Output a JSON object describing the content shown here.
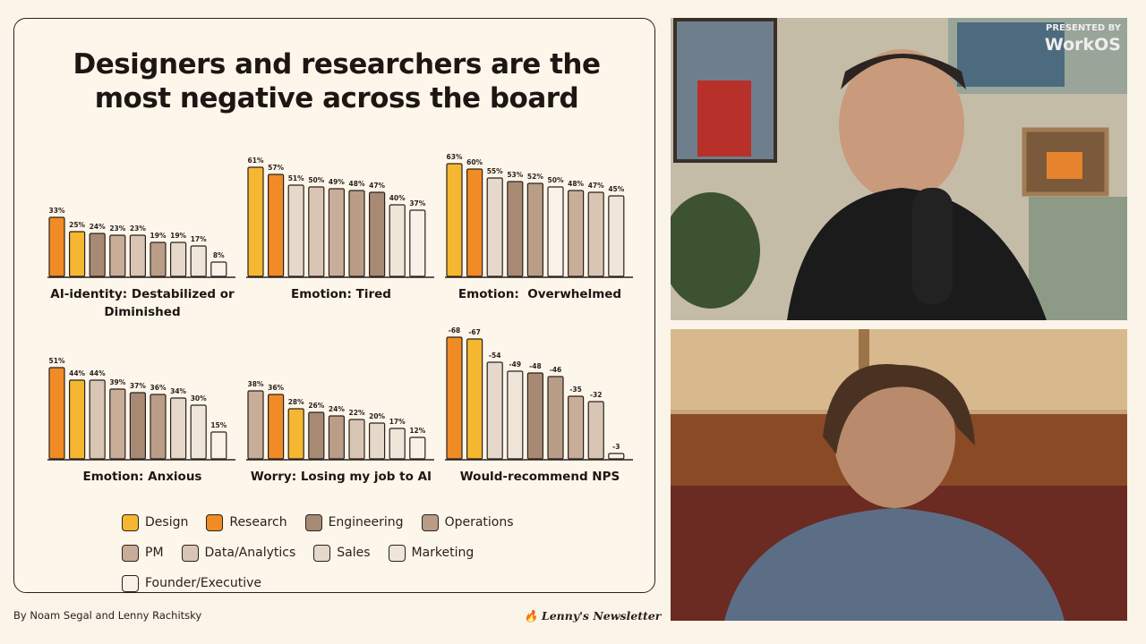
{
  "slide_title": "Designers and researchers are the most negative across the board",
  "legend": [
    {
      "name": "Design",
      "color": "#f5b731"
    },
    {
      "name": "Research",
      "color": "#f08b26"
    },
    {
      "name": "Engineering",
      "color": "#a88a74"
    },
    {
      "name": "Operations",
      "color": "#b99d87"
    },
    {
      "name": "PM",
      "color": "#c8ad99"
    },
    {
      "name": "Data/Analytics",
      "color": "#d8c5b3"
    },
    {
      "name": "Sales",
      "color": "#e6d8ca"
    },
    {
      "name": "Marketing",
      "color": "#efe5d9"
    },
    {
      "name": "Founder/Executive",
      "color": "#f9f2e9"
    }
  ],
  "chart_data": [
    {
      "type": "bar",
      "title": "AI-identity: Destabilized or Diminished",
      "ylim": [
        0,
        70
      ],
      "categories": [
        "Research",
        "Design",
        "Engineering",
        "PM",
        "Data/Analytics",
        "Operations",
        "Sales",
        "Marketing",
        "Founder/Executive"
      ],
      "values": [
        33,
        25,
        24,
        23,
        23,
        19,
        19,
        17,
        8
      ],
      "value_labels": [
        "33%",
        "25%",
        "24%",
        "23%",
        "23%",
        "19%",
        "19%",
        "17%",
        "8%"
      ]
    },
    {
      "type": "bar",
      "title": "Emotion: Tired",
      "ylim": [
        0,
        70
      ],
      "categories": [
        "Design",
        "Research",
        "Sales",
        "Data/Analytics",
        "PM",
        "Operations",
        "Engineering",
        "Marketing",
        "Founder/Executive"
      ],
      "values": [
        61,
        57,
        51,
        50,
        49,
        48,
        47,
        40,
        37
      ],
      "value_labels": [
        "61%",
        "57%",
        "51%",
        "50%",
        "49%",
        "48%",
        "47%",
        "40%",
        "37%"
      ]
    },
    {
      "type": "bar",
      "title": "Emotion:  Overwhelmed",
      "ylim": [
        0,
        70
      ],
      "categories": [
        "Design",
        "Research",
        "Sales",
        "Engineering",
        "Operations",
        "Founder/Executive",
        "PM",
        "Data/Analytics",
        "Marketing"
      ],
      "values": [
        63,
        60,
        55,
        53,
        52,
        50,
        48,
        47,
        45
      ],
      "value_labels": [
        "63%",
        "60%",
        "55%",
        "53%",
        "52%",
        "50%",
        "48%",
        "47%",
        "45%"
      ]
    },
    {
      "type": "bar",
      "title": "Emotion: Anxious",
      "ylim": [
        0,
        70
      ],
      "categories": [
        "Research",
        "Design",
        "Data/Analytics",
        "PM",
        "Engineering",
        "Operations",
        "Sales",
        "Marketing",
        "Founder/Executive"
      ],
      "values": [
        51,
        44,
        44,
        39,
        37,
        36,
        34,
        30,
        15
      ],
      "value_labels": [
        "51%",
        "44%",
        "44%",
        "39%",
        "37%",
        "36%",
        "34%",
        "30%",
        "15%"
      ]
    },
    {
      "type": "bar",
      "title": "Worry: Losing my job to AI",
      "ylim": [
        0,
        70
      ],
      "categories": [
        "PM",
        "Research",
        "Design",
        "Engineering",
        "Operations",
        "Data/Analytics",
        "Sales",
        "Marketing",
        "Founder/Executive"
      ],
      "values": [
        38,
        36,
        28,
        26,
        24,
        22,
        20,
        17,
        12
      ],
      "value_labels": [
        "38%",
        "36%",
        "28%",
        "26%",
        "24%",
        "22%",
        "20%",
        "17%",
        "12%"
      ]
    },
    {
      "type": "bar",
      "title": "Would-recommend NPS",
      "ylim": [
        0,
        -70
      ],
      "categories": [
        "Research",
        "Design",
        "Sales",
        "Marketing",
        "Engineering",
        "Operations",
        "PM",
        "Data/Analytics",
        "Founder/Executive"
      ],
      "values": [
        -68,
        -67,
        -54,
        -49,
        -48,
        -46,
        -35,
        -32,
        -3
      ]
    }
  ],
  "footer": {
    "byline": "By Noam Segal and Lenny Rachitsky",
    "brand": "Lenny's Newsletter"
  },
  "overlay": {
    "presented_by": "PRESENTED BY",
    "sponsor": "WorkOS"
  }
}
